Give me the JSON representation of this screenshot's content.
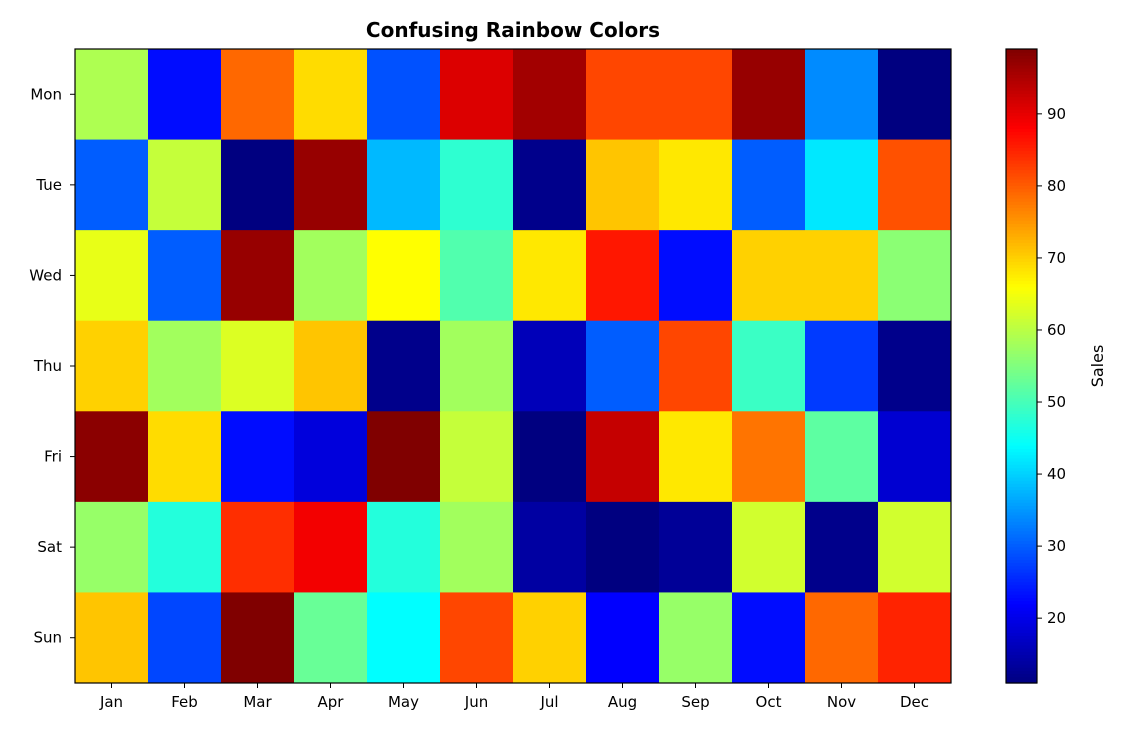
{
  "chart_data": {
    "type": "heatmap",
    "title": "Confusing Rainbow Colors",
    "title_color": "#d62728",
    "colormap": "jet",
    "x_categories": [
      "Jan",
      "Feb",
      "Mar",
      "Apr",
      "May",
      "Jun",
      "Jul",
      "Aug",
      "Sep",
      "Oct",
      "Nov",
      "Dec"
    ],
    "y_categories": [
      "Mon",
      "Tue",
      "Wed",
      "Thu",
      "Fri",
      "Sat",
      "Sun"
    ],
    "values": [
      [
        59,
        23,
        79,
        69,
        29,
        91,
        96,
        82,
        82,
        97,
        34,
        11
      ],
      [
        30,
        61,
        11,
        97,
        38,
        48,
        12,
        71,
        68,
        30,
        42,
        81
      ],
      [
        64,
        30,
        97,
        58,
        66,
        51,
        68,
        86,
        23,
        70,
        70,
        56
      ],
      [
        70,
        58,
        63,
        71,
        12,
        58,
        16,
        30,
        82,
        49,
        27,
        12
      ],
      [
        98,
        69,
        23,
        19,
        99,
        61,
        11,
        93,
        68,
        78,
        52,
        18
      ],
      [
        57,
        47,
        84,
        89,
        47,
        58,
        14,
        11,
        13,
        62,
        12,
        62
      ],
      [
        71,
        28,
        99,
        53,
        44,
        82,
        70,
        22,
        57,
        23,
        79,
        85
      ]
    ],
    "colorbar": {
      "label": "Sales",
      "range": [
        11,
        99
      ],
      "ticks": [
        20,
        30,
        40,
        50,
        60,
        70,
        80,
        90
      ]
    },
    "grid": false
  }
}
